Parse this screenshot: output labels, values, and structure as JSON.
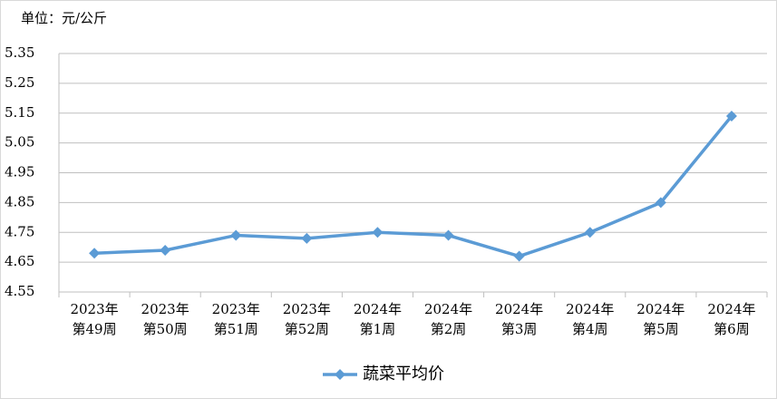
{
  "chart_data": {
    "type": "line",
    "title": "单位：元/公斤",
    "categories": [
      "2023年\n第49周",
      "2023年\n第50周",
      "2023年\n第51周",
      "2023年\n第52周",
      "2024年\n第1周",
      "2024年\n第2周",
      "2024年\n第3周",
      "2024年\n第4周",
      "2024年\n第5周",
      "2024年\n第6周"
    ],
    "series": [
      {
        "name": "蔬菜平均价",
        "color": "#5b9bd5",
        "values": [
          4.68,
          4.69,
          4.74,
          4.73,
          4.75,
          4.74,
          4.67,
          4.75,
          4.85,
          5.14
        ]
      }
    ],
    "ylim": [
      4.55,
      5.35
    ],
    "yticks": [
      4.55,
      4.65,
      4.75,
      4.85,
      4.95,
      5.05,
      5.15,
      5.25,
      5.35
    ],
    "grid": true,
    "legend": "bottom"
  }
}
